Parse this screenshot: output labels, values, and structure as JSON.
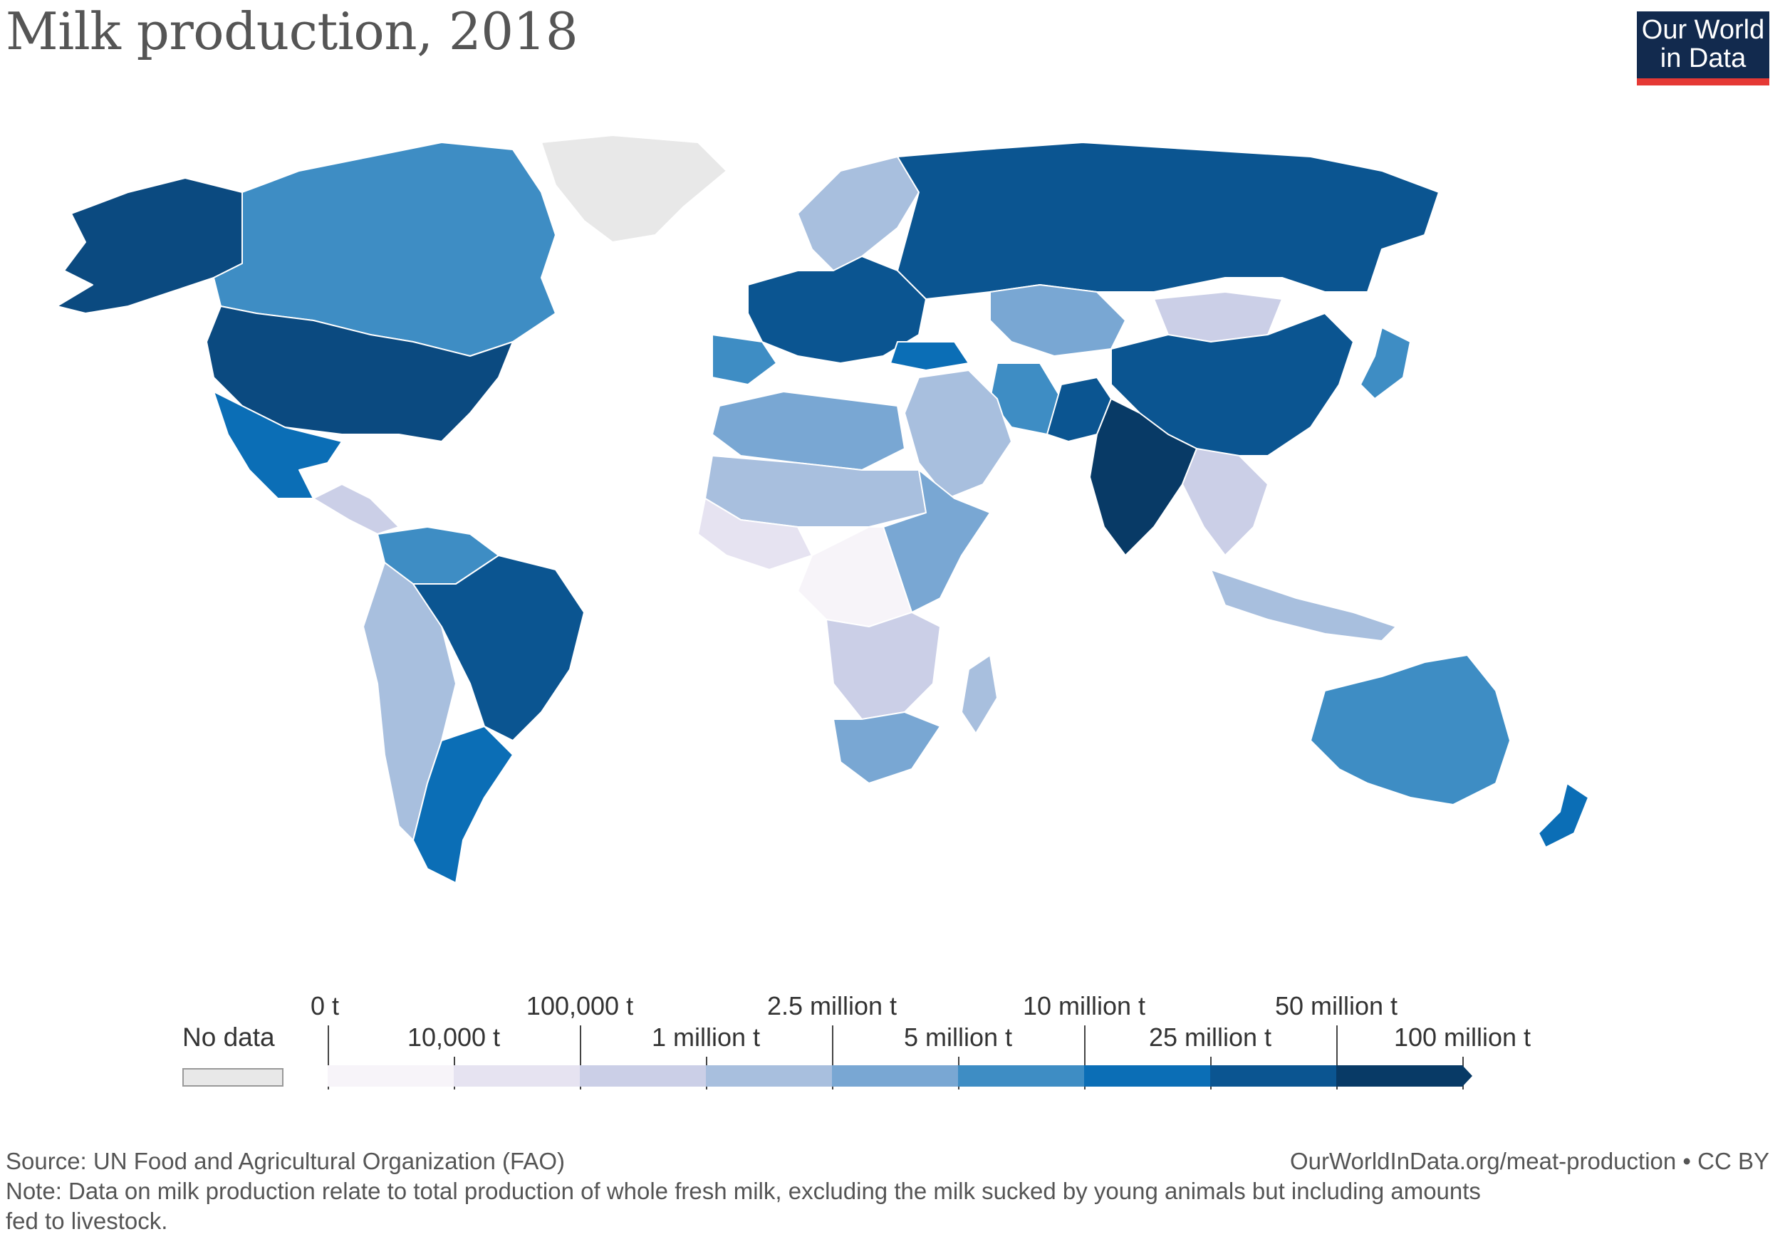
{
  "title": "Milk production, 2018",
  "logo": {
    "line1": "Our World",
    "line2": "in Data"
  },
  "legend": {
    "no_data_label": "No data",
    "upper_labels": [
      "0 t",
      "100,000 t",
      "2.5 million t",
      "10 million t",
      "50 million t"
    ],
    "lower_labels": [
      "10,000 t",
      "1 million t",
      "5 million t",
      "25 million t",
      "100 million t"
    ],
    "colors": [
      "#f7f4f9",
      "#e6e3f1",
      "#cbcfe7",
      "#a8bfde",
      "#79a7d3",
      "#3e8dc4",
      "#0b6eb6",
      "#0b5591",
      "#083a66"
    ]
  },
  "map_colors": {
    "no_data": "#e8e8e8",
    "north_america_usa": "#0b4a80",
    "canada": "#3e8dc4",
    "alaska": "#0b4a80",
    "mexico": "#0b6eb6",
    "central_america": "#cbcfe7",
    "brazil": "#0b5591",
    "argentina": "#0b6eb6",
    "south_america_other": "#a8bfde",
    "colombia": "#3e8dc4",
    "europe": "#0b5591",
    "scandinavia": "#a8bfde",
    "iberia": "#3e8dc4",
    "russia": "#0b5591",
    "kazakhstan": "#79a7d3",
    "mongolia": "#cbcfe7",
    "china": "#0b5591",
    "india": "#083a66",
    "pakistan": "#0b5591",
    "iran": "#3e8dc4",
    "turkey": "#0b6eb6",
    "middle_east": "#a8bfde",
    "north_africa": "#79a7d3",
    "sahel": "#a8bfde",
    "west_africa": "#e6e3f1",
    "central_africa": "#f7f4f9",
    "east_africa": "#79a7d3",
    "southern_africa": "#cbcfe7",
    "south_africa": "#79a7d3",
    "madagascar": "#a8bfde",
    "southeast_asia": "#cbcfe7",
    "indonesia": "#a8bfde",
    "japan": "#3e8dc4",
    "australia": "#3e8dc4",
    "new_zealand": "#0b6eb6",
    "greenland": "#e8e8e8"
  },
  "source": "Source: UN Food and Agricultural Organization (FAO)",
  "note_line1": "Note: Data on milk production relate to total production of whole fresh milk, excluding the milk sucked by young animals but including amounts",
  "note_line2": "fed to livestock.",
  "attribution": "OurWorldInData.org/meat-production • CC BY"
}
